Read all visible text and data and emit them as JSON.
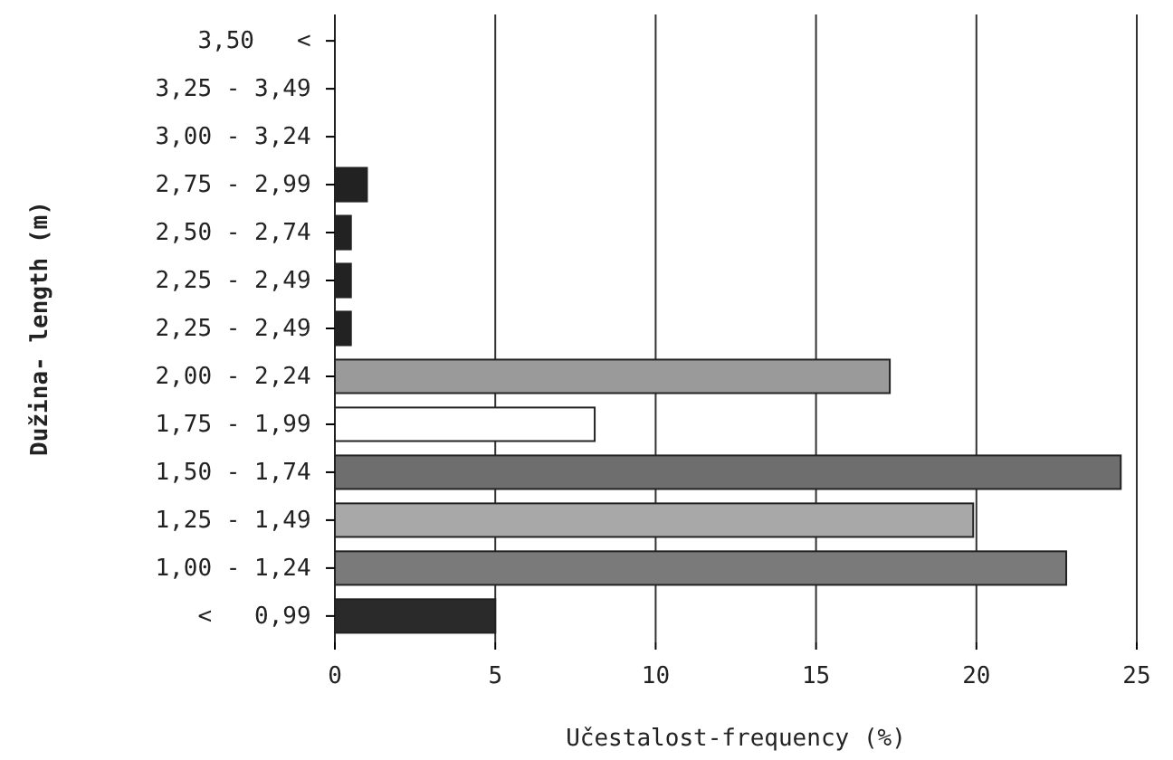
{
  "chart_data": {
    "type": "bar",
    "orientation": "horizontal",
    "xlabel": "Učestalost-frequency (%)",
    "ylabel": "Dužina- length (m)",
    "categories": [
      "3,50   <",
      "3,25 - 3,49",
      "3,00 - 3,24",
      "2,75 - 2,99",
      "2,50 - 2,74",
      "2,25 - 2,49",
      "2,25 - 2,49",
      "2,00 - 2,24",
      "1,75 - 1,99",
      "1,50 - 1,74",
      "1,25 - 1,49",
      "1,00 - 1,24",
      "<   0,99"
    ],
    "values": [
      0,
      0,
      0,
      1,
      0.5,
      0.5,
      0.5,
      17.3,
      8.1,
      24.5,
      19.9,
      22.8,
      5
    ],
    "colors": [
      "#222222",
      "#222222",
      "#222222",
      "#222222",
      "#222222",
      "#222222",
      "#222222",
      "#9a9a9a",
      "#ffffff",
      "#6e6e6e",
      "#a8a8a8",
      "#7a7a7a",
      "#2a2a2a"
    ],
    "xlim": [
      0,
      25
    ],
    "xticks": [
      0,
      5,
      10,
      15,
      20,
      25
    ],
    "grid": "x"
  }
}
